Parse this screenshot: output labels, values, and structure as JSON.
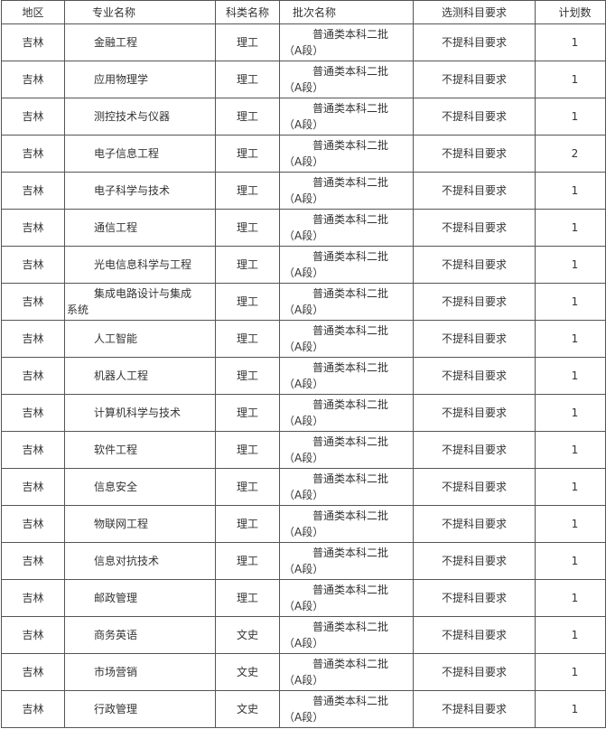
{
  "headers": [
    "地区",
    "专业名称",
    "科类名称",
    "批次名称",
    "选测科目要求",
    "计划数"
  ],
  "rows": [
    {
      "region": "吉林",
      "major": "金融工程",
      "category": "理工",
      "batch": "普通类本科二批（A段）",
      "requirement": "不提科目要求",
      "plan": "1"
    },
    {
      "region": "吉林",
      "major": "应用物理学",
      "category": "理工",
      "batch": "普通类本科二批（A段）",
      "requirement": "不提科目要求",
      "plan": "1"
    },
    {
      "region": "吉林",
      "major": "测控技术与仪器",
      "category": "理工",
      "batch": "普通类本科二批（A段）",
      "requirement": "不提科目要求",
      "plan": "1"
    },
    {
      "region": "吉林",
      "major": "电子信息工程",
      "category": "理工",
      "batch": "普通类本科二批（A段）",
      "requirement": "不提科目要求",
      "plan": "2"
    },
    {
      "region": "吉林",
      "major": "电子科学与技术",
      "category": "理工",
      "batch": "普通类本科二批（A段）",
      "requirement": "不提科目要求",
      "plan": "1"
    },
    {
      "region": "吉林",
      "major": "通信工程",
      "category": "理工",
      "batch": "普通类本科二批（A段）",
      "requirement": "不提科目要求",
      "plan": "1"
    },
    {
      "region": "吉林",
      "major": "光电信息科学与工程",
      "category": "理工",
      "batch": "普通类本科二批（A段）",
      "requirement": "不提科目要求",
      "plan": "1"
    },
    {
      "region": "吉林",
      "major": "集成电路设计与集成系统",
      "category": "理工",
      "batch": "普通类本科二批（A段）",
      "requirement": "不提科目要求",
      "plan": "1"
    },
    {
      "region": "吉林",
      "major": "人工智能",
      "category": "理工",
      "batch": "普通类本科二批（A段）",
      "requirement": "不提科目要求",
      "plan": "1"
    },
    {
      "region": "吉林",
      "major": "机器人工程",
      "category": "理工",
      "batch": "普通类本科二批（A段）",
      "requirement": "不提科目要求",
      "plan": "1"
    },
    {
      "region": "吉林",
      "major": "计算机科学与技术",
      "category": "理工",
      "batch": "普通类本科二批（A段）",
      "requirement": "不提科目要求",
      "plan": "1"
    },
    {
      "region": "吉林",
      "major": "软件工程",
      "category": "理工",
      "batch": "普通类本科二批（A段）",
      "requirement": "不提科目要求",
      "plan": "1"
    },
    {
      "region": "吉林",
      "major": "信息安全",
      "category": "理工",
      "batch": "普通类本科二批（A段）",
      "requirement": "不提科目要求",
      "plan": "1"
    },
    {
      "region": "吉林",
      "major": "物联网工程",
      "category": "理工",
      "batch": "普通类本科二批（A段）",
      "requirement": "不提科目要求",
      "plan": "1"
    },
    {
      "region": "吉林",
      "major": "信息对抗技术",
      "category": "理工",
      "batch": "普通类本科二批（A段）",
      "requirement": "不提科目要求",
      "plan": "1"
    },
    {
      "region": "吉林",
      "major": "邮政管理",
      "category": "理工",
      "batch": "普通类本科二批（A段）",
      "requirement": "不提科目要求",
      "plan": "1"
    },
    {
      "region": "吉林",
      "major": "商务英语",
      "category": "文史",
      "batch": "普通类本科二批（A段）",
      "requirement": "不提科目要求",
      "plan": "1"
    },
    {
      "region": "吉林",
      "major": "市场营销",
      "category": "文史",
      "batch": "普通类本科二批（A段）",
      "requirement": "不提科目要求",
      "plan": "1"
    },
    {
      "region": "吉林",
      "major": "行政管理",
      "category": "文史",
      "batch": "普通类本科二批（A段）",
      "requirement": "不提科目要求",
      "plan": "1"
    }
  ]
}
